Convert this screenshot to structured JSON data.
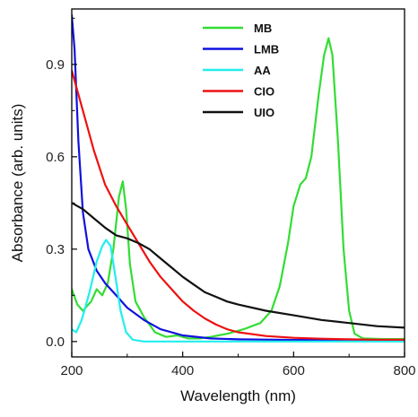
{
  "chart_data": {
    "type": "line",
    "title": "",
    "xlabel": "Wavelength (nm)",
    "ylabel": "Absorbance (arb. units)",
    "xlim": [
      200,
      800
    ],
    "ylim": [
      -0.05,
      1.08
    ],
    "x_ticks": [
      200,
      400,
      600,
      800
    ],
    "y_ticks": [
      0.0,
      0.3,
      0.6,
      0.9
    ],
    "x_tick_labels": [
      "200",
      "400",
      "600",
      "800"
    ],
    "y_tick_labels": [
      "0.0",
      "0.3",
      "0.6",
      "0.9"
    ],
    "grid": false,
    "legend_position": "top-center",
    "series": [
      {
        "name": "MB",
        "color": "#33dd33",
        "points": [
          [
            200,
            0.17
          ],
          [
            210,
            0.12
          ],
          [
            220,
            0.1
          ],
          [
            235,
            0.13
          ],
          [
            245,
            0.17
          ],
          [
            255,
            0.15
          ],
          [
            265,
            0.19
          ],
          [
            275,
            0.3
          ],
          [
            285,
            0.47
          ],
          [
            292,
            0.52
          ],
          [
            298,
            0.43
          ],
          [
            305,
            0.25
          ],
          [
            315,
            0.13
          ],
          [
            330,
            0.08
          ],
          [
            350,
            0.03
          ],
          [
            370,
            0.015
          ],
          [
            390,
            0.02
          ],
          [
            410,
            0.01
          ],
          [
            430,
            0.01
          ],
          [
            450,
            0.015
          ],
          [
            480,
            0.025
          ],
          [
            510,
            0.04
          ],
          [
            540,
            0.06
          ],
          [
            560,
            0.1
          ],
          [
            575,
            0.18
          ],
          [
            590,
            0.32
          ],
          [
            600,
            0.44
          ],
          [
            612,
            0.51
          ],
          [
            622,
            0.53
          ],
          [
            632,
            0.6
          ],
          [
            645,
            0.8
          ],
          [
            655,
            0.93
          ],
          [
            663,
            0.985
          ],
          [
            670,
            0.93
          ],
          [
            680,
            0.65
          ],
          [
            690,
            0.3
          ],
          [
            700,
            0.1
          ],
          [
            710,
            0.025
          ],
          [
            725,
            0.01
          ],
          [
            760,
            0.008
          ],
          [
            800,
            0.008
          ]
        ]
      },
      {
        "name": "LMB",
        "color": "#1111dd",
        "points": [
          [
            200,
            1.06
          ],
          [
            205,
            0.95
          ],
          [
            212,
            0.65
          ],
          [
            220,
            0.42
          ],
          [
            230,
            0.3
          ],
          [
            245,
            0.23
          ],
          [
            260,
            0.19
          ],
          [
            280,
            0.15
          ],
          [
            300,
            0.11
          ],
          [
            330,
            0.07
          ],
          [
            360,
            0.04
          ],
          [
            400,
            0.02
          ],
          [
            450,
            0.01
          ],
          [
            500,
            0.007
          ],
          [
            600,
            0.005
          ],
          [
            700,
            0.005
          ],
          [
            800,
            0.005
          ]
        ]
      },
      {
        "name": "AA",
        "color": "#22eeee",
        "points": [
          [
            200,
            0.04
          ],
          [
            208,
            0.03
          ],
          [
            218,
            0.07
          ],
          [
            232,
            0.16
          ],
          [
            245,
            0.26
          ],
          [
            255,
            0.31
          ],
          [
            262,
            0.33
          ],
          [
            270,
            0.31
          ],
          [
            278,
            0.22
          ],
          [
            288,
            0.1
          ],
          [
            298,
            0.03
          ],
          [
            310,
            0.006
          ],
          [
            330,
            0.0
          ],
          [
            400,
            0.0
          ],
          [
            500,
            0.0
          ],
          [
            600,
            0.0
          ],
          [
            700,
            0.0
          ],
          [
            800,
            0.0
          ]
        ]
      },
      {
        "name": "CIO",
        "color": "#ee1111",
        "points": [
          [
            200,
            0.88
          ],
          [
            220,
            0.75
          ],
          [
            240,
            0.62
          ],
          [
            260,
            0.51
          ],
          [
            280,
            0.44
          ],
          [
            300,
            0.38
          ],
          [
            320,
            0.32
          ],
          [
            340,
            0.26
          ],
          [
            360,
            0.21
          ],
          [
            380,
            0.17
          ],
          [
            400,
            0.13
          ],
          [
            420,
            0.1
          ],
          [
            440,
            0.075
          ],
          [
            460,
            0.055
          ],
          [
            480,
            0.04
          ],
          [
            500,
            0.03
          ],
          [
            550,
            0.018
          ],
          [
            600,
            0.012
          ],
          [
            650,
            0.009
          ],
          [
            700,
            0.007
          ],
          [
            750,
            0.006
          ],
          [
            800,
            0.006
          ]
        ]
      },
      {
        "name": "UIO",
        "color": "#111111",
        "points": [
          [
            200,
            0.45
          ],
          [
            220,
            0.43
          ],
          [
            240,
            0.4
          ],
          [
            260,
            0.37
          ],
          [
            280,
            0.345
          ],
          [
            300,
            0.335
          ],
          [
            320,
            0.32
          ],
          [
            340,
            0.3
          ],
          [
            360,
            0.27
          ],
          [
            380,
            0.24
          ],
          [
            400,
            0.21
          ],
          [
            420,
            0.185
          ],
          [
            440,
            0.16
          ],
          [
            460,
            0.145
          ],
          [
            480,
            0.13
          ],
          [
            500,
            0.12
          ],
          [
            550,
            0.1
          ],
          [
            600,
            0.085
          ],
          [
            650,
            0.07
          ],
          [
            700,
            0.06
          ],
          [
            750,
            0.05
          ],
          [
            800,
            0.045
          ]
        ]
      }
    ]
  }
}
